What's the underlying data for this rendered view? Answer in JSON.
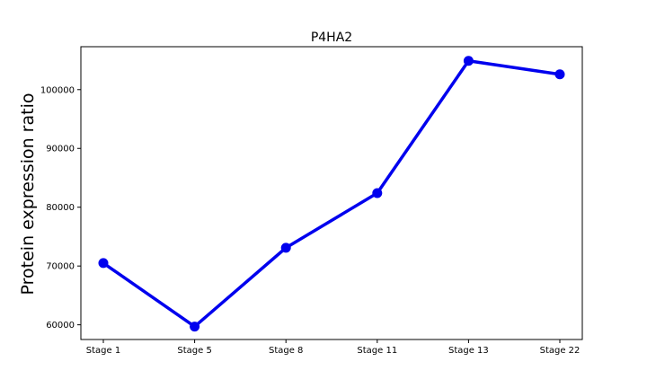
{
  "chart_data": {
    "type": "line",
    "title": "P4HA2",
    "xlabel": "",
    "ylabel": "Protein expression ratio",
    "categories": [
      "Stage 1",
      "Stage 5",
      "Stage 8",
      "Stage 11",
      "Stage 13",
      "Stage 22"
    ],
    "series": [
      {
        "values": [
          70500,
          59700,
          73100,
          82400,
          104900,
          102600
        ],
        "color": "#0000ee"
      }
    ],
    "ylim": [
      57500,
      107300
    ],
    "yticks": [
      60000,
      70000,
      80000,
      90000,
      100000
    ],
    "ytick_labels": [
      "60000",
      "70000",
      "80000",
      "90000",
      "100000"
    ],
    "grid": false,
    "legend": null
  }
}
